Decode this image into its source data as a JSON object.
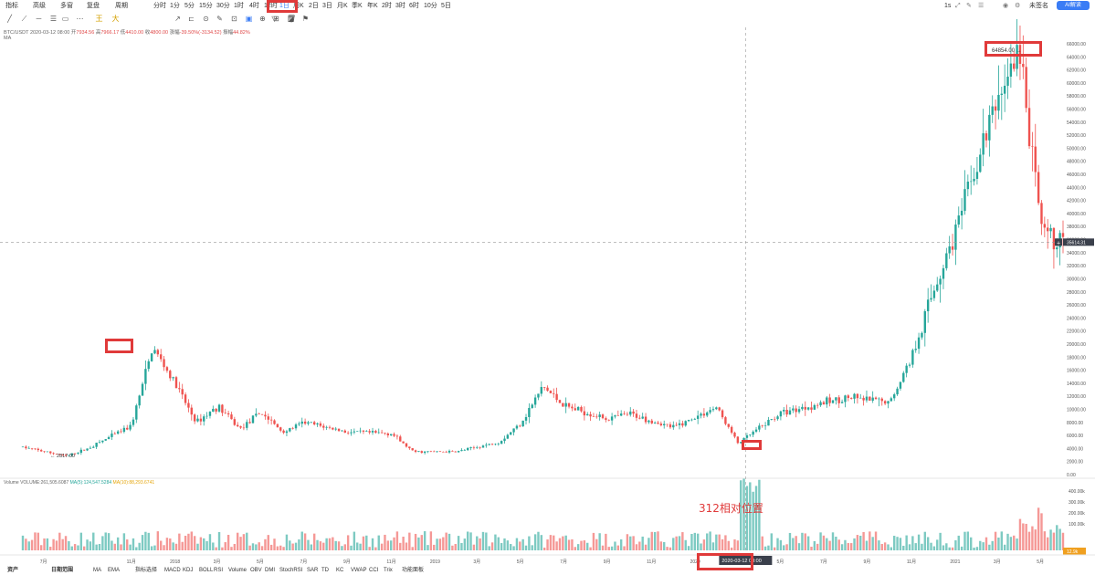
{
  "toolbar": {
    "items": [
      "指标",
      "高级",
      "多窗",
      "复盘",
      "周期",
      "分时",
      "1分",
      "5分",
      "15分",
      "30分",
      "1时",
      "4时",
      "12时",
      "1日",
      "周K",
      "2日",
      "3日",
      "月K",
      "季K",
      "年K",
      "2时",
      "3时",
      "6时",
      "10分",
      "5日"
    ],
    "active": "1日",
    "right": {
      "lang": "1s",
      "currency": "未签名"
    },
    "ai_label": "AI解读"
  },
  "drawing_tools": {
    "icons": [
      "line-tool",
      "ray-tool",
      "horizontal-line",
      "channel",
      "rectangle",
      "more",
      "text",
      "pattern",
      "fib",
      "measure",
      "brush",
      "ruler",
      "eraser",
      "lock",
      "visibility",
      "screenshot",
      "settings",
      "alert",
      "filter",
      "delete"
    ],
    "labels": [
      "王",
      "大"
    ]
  },
  "info": {
    "symbol": "BTC/USDT",
    "date": "2020-03-12 08:00",
    "open_label": "开",
    "open": "7934.56",
    "high_label": "高",
    "high": "7966.17",
    "low_label": "低",
    "low": "4410.00",
    "close_label": "收",
    "close": "4800.00",
    "change_label": "涨幅",
    "change": "-39.50%(-3134.52)",
    "amp_label": "振幅",
    "amp": "44.82%",
    "ma_label": "MA"
  },
  "price_axis": [
    "66000.00",
    "64000.00",
    "62000.00",
    "60000.00",
    "58000.00",
    "56000.00",
    "54000.00",
    "52000.00",
    "50000.00",
    "48000.00",
    "46000.00",
    "44000.00",
    "42000.00",
    "40000.00",
    "38000.00",
    "36000.00",
    "34000.00",
    "32000.00",
    "30000.00",
    "28000.00",
    "26000.00",
    "24000.00",
    "22000.00",
    "20000.00",
    "18000.00",
    "16000.00",
    "14000.00",
    "12000.00",
    "10000.00",
    "8000.00",
    "6000.00",
    "4000.00",
    "2000.00",
    "0.00"
  ],
  "crosshair_price": "35614.31",
  "annotations": {
    "high": "64854.00",
    "low": "2817.00",
    "note": "312相对位置"
  },
  "volume": {
    "title": "Volume",
    "label": "VOLUME:261,505.6087",
    "ma5": "MA(5):124,547.5284",
    "ma10": "MA(10):88,293.6741",
    "axis": [
      "400.00k",
      "300.00k",
      "200.00k",
      "100.00k"
    ],
    "current": "12.9k"
  },
  "time_axis": [
    "7月",
    "11月",
    "2018",
    "3月",
    "5月",
    "7月",
    "9月",
    "11月",
    "2019",
    "3月",
    "5月",
    "7月",
    "9月",
    "11月",
    "2020",
    "3月",
    "5月",
    "7月",
    "9月",
    "11月",
    "2021",
    "3月",
    "5月"
  ],
  "crosshair_time": "2020-03-12 08:00",
  "bottom_bar": [
    "资产",
    "日期范围",
    "MA",
    "EMA",
    "指标选择",
    "MACD",
    "KDJ",
    "BOLL",
    "RSI",
    "Volume",
    "OBV",
    "DMI",
    "StochRSI",
    "SAR",
    "TD",
    "KC",
    "VWAP",
    "CCI",
    "Trix",
    "功能面板"
  ],
  "colors": {
    "up": "#26a69a",
    "down": "#ef5350",
    "box": "#e03a3a",
    "accent": "#3a7cf5"
  },
  "chart_data": {
    "type": "candlestick",
    "symbol": "BTC/USDT",
    "interval": "1日",
    "x_start": "2017-06",
    "x_end": "2021-06",
    "ylim": [
      0,
      66000
    ],
    "anchor_points": [
      {
        "date": "2017-06",
        "price": 4200
      },
      {
        "date": "2017-08",
        "price": 2817
      },
      {
        "date": "2017-09",
        "price": 4000
      },
      {
        "date": "2017-11",
        "price": 7500
      },
      {
        "date": "2017-12",
        "price": 19500
      },
      {
        "date": "2018-01",
        "price": 14000
      },
      {
        "date": "2018-02",
        "price": 8000
      },
      {
        "date": "2018-03",
        "price": 10500
      },
      {
        "date": "2018-04",
        "price": 7000
      },
      {
        "date": "2018-05",
        "price": 9500
      },
      {
        "date": "2018-06",
        "price": 6500
      },
      {
        "date": "2018-07",
        "price": 8000
      },
      {
        "date": "2018-09",
        "price": 6500
      },
      {
        "date": "2018-11",
        "price": 6300
      },
      {
        "date": "2018-12",
        "price": 3500
      },
      {
        "date": "2019-02",
        "price": 3500
      },
      {
        "date": "2019-04",
        "price": 5000
      },
      {
        "date": "2019-05",
        "price": 8000
      },
      {
        "date": "2019-06",
        "price": 13500
      },
      {
        "date": "2019-07",
        "price": 10500
      },
      {
        "date": "2019-09",
        "price": 8500
      },
      {
        "date": "2019-10",
        "price": 9300
      },
      {
        "date": "2019-12",
        "price": 7200
      },
      {
        "date": "2020-02",
        "price": 10300
      },
      {
        "date": "2020-03",
        "price": 4800
      },
      {
        "date": "2020-05",
        "price": 9500
      },
      {
        "date": "2020-08",
        "price": 11800
      },
      {
        "date": "2020-10",
        "price": 11000
      },
      {
        "date": "2020-11",
        "price": 18000
      },
      {
        "date": "2020-12",
        "price": 28000
      },
      {
        "date": "2021-01",
        "price": 37000
      },
      {
        "date": "2021-02",
        "price": 47000
      },
      {
        "date": "2021-03",
        "price": 58000
      },
      {
        "date": "2021-04",
        "price": 64854
      },
      {
        "date": "2021-05",
        "price": 37000
      },
      {
        "date": "2021-06",
        "price": 35614
      }
    ]
  }
}
